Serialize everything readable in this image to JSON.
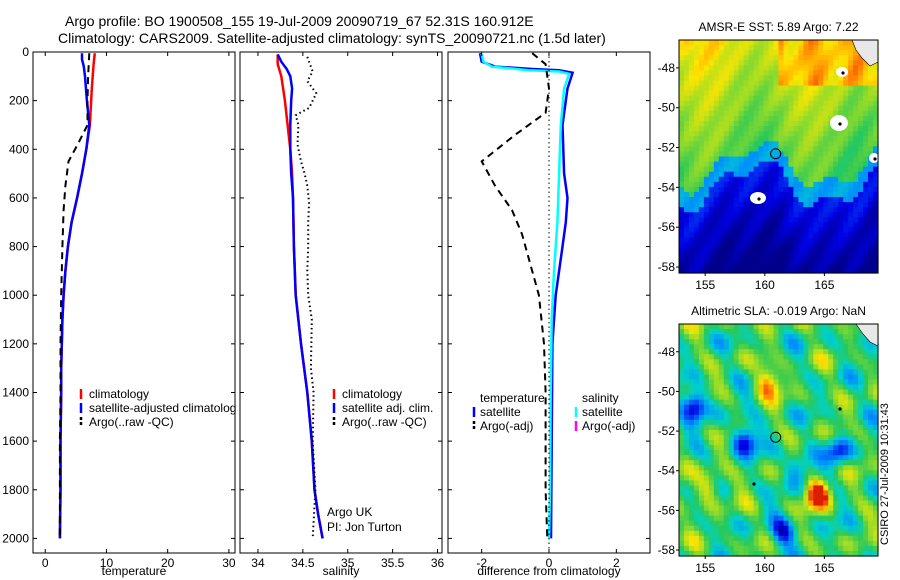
{
  "header": {
    "line1": "Argo profile: BO 1900508_155 19-Jul-2009 20090719_67 52.31S 160.912E",
    "line2": "Climatology: CARS2009. Satellite-adjusted climatology: synTS_20090721.nc (1.5d later)"
  },
  "credit": {
    "argo": "Argo UK",
    "pi": "PI: Jon Turton",
    "stamp": "CSIRO 27-Jul-2009 10:31:43"
  },
  "colors": {
    "climatology": "#ff0000",
    "satellite": "#0000ff",
    "argo": "#000000",
    "salinity_satellite": "#00ffff",
    "salinity_argo": "#ff00ff"
  },
  "chart_data": [
    {
      "type": "line",
      "xlabel": "temperature",
      "ylabel": "",
      "xlim": [
        -2,
        31
      ],
      "ylim": [
        2060,
        0
      ],
      "xticks": [
        0,
        10,
        20,
        30
      ],
      "yticks": [
        0,
        200,
        400,
        600,
        800,
        1000,
        1200,
        1400,
        1600,
        1800,
        2000
      ],
      "legend": {
        "placement": "lower-right",
        "entries": [
          "climatology",
          "satellite-adjusted climatolog",
          "Argo(..raw -QC)"
        ]
      },
      "series": [
        {
          "name": "climatology",
          "color": "#ff0000",
          "points": [
            [
              8.1,
              5
            ],
            [
              7.9,
              50
            ],
            [
              7.6,
              150
            ],
            [
              7.4,
              250
            ],
            [
              7.3,
              300
            ],
            [
              6.7,
              400
            ],
            [
              6.0,
              500
            ],
            [
              5.2,
              600
            ],
            [
              4.3,
              700
            ],
            [
              3.7,
              800
            ],
            [
              3.3,
              900
            ],
            [
              3.0,
              1000
            ],
            [
              2.8,
              1100
            ],
            [
              2.7,
              1200
            ],
            [
              2.6,
              1300
            ],
            [
              2.6,
              1400
            ],
            [
              2.5,
              1600
            ],
            [
              2.5,
              1800
            ],
            [
              2.4,
              2000
            ]
          ]
        },
        {
          "name": "satellite-adjusted climatolog",
          "color": "#0000ff",
          "points": [
            [
              6.0,
              5
            ],
            [
              6.0,
              30
            ],
            [
              6.3,
              60
            ],
            [
              6.5,
              100
            ],
            [
              6.8,
              200
            ],
            [
              7.2,
              300
            ],
            [
              6.7,
              400
            ],
            [
              6.0,
              500
            ],
            [
              5.2,
              600
            ],
            [
              4.3,
              700
            ],
            [
              3.7,
              800
            ],
            [
              3.3,
              900
            ],
            [
              3.0,
              1000
            ],
            [
              2.8,
              1100
            ],
            [
              2.7,
              1200
            ],
            [
              2.6,
              1300
            ],
            [
              2.6,
              1400
            ],
            [
              2.5,
              1600
            ],
            [
              2.5,
              1800
            ],
            [
              2.4,
              2000
            ]
          ]
        },
        {
          "name": "Argo(..raw -QC)",
          "color": "#000000",
          "dashed": true,
          "points": [
            [
              7.2,
              5
            ],
            [
              7.0,
              100
            ],
            [
              6.9,
              200
            ],
            [
              6.9,
              300
            ],
            [
              5.3,
              380
            ],
            [
              3.8,
              450
            ],
            [
              3.3,
              550
            ],
            [
              3.0,
              650
            ],
            [
              2.8,
              800
            ],
            [
              2.6,
              1000
            ],
            [
              2.5,
              1200
            ],
            [
              2.5,
              1400
            ],
            [
              2.4,
              1600
            ],
            [
              2.4,
              1800
            ],
            [
              2.4,
              2000
            ]
          ]
        }
      ]
    },
    {
      "type": "line",
      "xlabel": "salinity",
      "ylabel": "",
      "xlim": [
        33.8,
        36.05
      ],
      "ylim": [
        2060,
        0
      ],
      "xticks": [
        34,
        34.5,
        35,
        35.5,
        36
      ],
      "xticklabels": [
        "34",
        "34.5",
        "35",
        "35.5",
        "36"
      ],
      "legend": {
        "placement": "lower-right",
        "entries": [
          "climatology",
          "satellite adj. clim.",
          "Argo(..raw -QC)"
        ]
      },
      "series": [
        {
          "name": "climatology",
          "color": "#ff0000",
          "points": [
            [
              34.22,
              10
            ],
            [
              34.22,
              50
            ],
            [
              34.26,
              100
            ],
            [
              34.3,
              200
            ],
            [
              34.33,
              300
            ],
            [
              34.36,
              400
            ],
            [
              34.38,
              500
            ],
            [
              34.39,
              600
            ],
            [
              34.4,
              800
            ],
            [
              34.42,
              1000
            ],
            [
              34.48,
              1200
            ],
            [
              34.55,
              1400
            ],
            [
              34.6,
              1600
            ],
            [
              34.63,
              1800
            ],
            [
              34.67,
              1900
            ],
            [
              34.72,
              2000
            ]
          ]
        },
        {
          "name": "satellite adj. clim.",
          "color": "#0000ff",
          "points": [
            [
              34.22,
              10
            ],
            [
              34.26,
              40
            ],
            [
              34.32,
              70
            ],
            [
              34.36,
              100
            ],
            [
              34.38,
              150
            ],
            [
              34.37,
              200
            ],
            [
              34.36,
              300
            ],
            [
              34.36,
              400
            ],
            [
              34.37,
              500
            ],
            [
              34.39,
              600
            ],
            [
              34.4,
              800
            ],
            [
              34.42,
              1000
            ],
            [
              34.48,
              1200
            ],
            [
              34.55,
              1400
            ],
            [
              34.6,
              1600
            ],
            [
              34.63,
              1800
            ],
            [
              34.67,
              1900
            ],
            [
              34.72,
              2000
            ]
          ]
        },
        {
          "name": "Argo(..raw -QC)",
          "color": "#000000",
          "dotted": true,
          "points": [
            [
              34.55,
              20
            ],
            [
              34.61,
              80
            ],
            [
              34.55,
              120
            ],
            [
              34.65,
              170
            ],
            [
              34.57,
              230
            ],
            [
              34.42,
              260
            ],
            [
              34.45,
              300
            ],
            [
              34.44,
              380
            ],
            [
              34.48,
              450
            ],
            [
              34.52,
              500
            ],
            [
              34.55,
              550
            ],
            [
              34.57,
              620
            ],
            [
              34.56,
              700
            ],
            [
              34.56,
              800
            ],
            [
              34.55,
              900
            ],
            [
              34.56,
              1000
            ],
            [
              34.6,
              1100
            ],
            [
              34.59,
              1300
            ],
            [
              34.62,
              1400
            ],
            [
              34.61,
              1600
            ],
            [
              34.64,
              1800
            ],
            [
              34.61,
              2000
            ]
          ]
        }
      ]
    },
    {
      "type": "line",
      "xlabel": "difference from climatology",
      "ylabel": "",
      "xlim": [
        -3,
        3
      ],
      "ylim": [
        2060,
        0
      ],
      "xticks": [
        -2,
        0,
        2
      ],
      "legend": {
        "placement": "lower-right",
        "columns": [
          {
            "title": "temperature",
            "entries": [
              "satellite",
              "Argo(-adj)"
            ]
          },
          {
            "title": "salinity",
            "entries": [
              "satellite",
              "Argo(-adj)"
            ]
          }
        ]
      },
      "series": [
        {
          "name": "temperature satellite",
          "color": "#0000ff",
          "points": [
            [
              -2.05,
              5
            ],
            [
              -2.0,
              40
            ],
            [
              -1.6,
              60
            ],
            [
              -0.5,
              70
            ],
            [
              0.3,
              75
            ],
            [
              0.7,
              85
            ],
            [
              0.55,
              150
            ],
            [
              0.4,
              300
            ],
            [
              0.45,
              500
            ],
            [
              0.55,
              600
            ],
            [
              0.5,
              700
            ],
            [
              0.4,
              800
            ],
            [
              0.3,
              900
            ],
            [
              0.2,
              1000
            ],
            [
              0.1,
              1200
            ],
            [
              0.08,
              1600
            ],
            [
              0.06,
              2000
            ]
          ]
        },
        {
          "name": "salinity satellite",
          "color": "#00ffff",
          "points": [
            [
              -2.0,
              8
            ],
            [
              -1.95,
              40
            ],
            [
              -1.7,
              60
            ],
            [
              -0.6,
              75
            ],
            [
              0.3,
              80
            ],
            [
              0.6,
              90
            ],
            [
              0.45,
              150
            ],
            [
              0.35,
              300
            ],
            [
              0.3,
              500
            ],
            [
              0.25,
              700
            ],
            [
              0.15,
              900
            ],
            [
              0.08,
              1100
            ],
            [
              0.05,
              1400
            ],
            [
              0.03,
              1800
            ],
            [
              0.0,
              2000
            ]
          ]
        },
        {
          "name": "temperature Argo(-adj)",
          "color": "#000000",
          "dashed": true,
          "points": [
            [
              -0.5,
              5
            ],
            [
              -0.1,
              50
            ],
            [
              0.0,
              150
            ],
            [
              -0.1,
              250
            ],
            [
              -1.0,
              340
            ],
            [
              -2.0,
              450
            ],
            [
              -1.6,
              550
            ],
            [
              -1.1,
              650
            ],
            [
              -0.8,
              750
            ],
            [
              -0.6,
              850
            ],
            [
              -0.3,
              1000
            ],
            [
              -0.15,
              1200
            ],
            [
              -0.1,
              1400
            ],
            [
              -0.1,
              1600
            ],
            [
              -0.1,
              1800
            ],
            [
              -0.05,
              2000
            ]
          ]
        },
        {
          "name": "zero reference",
          "color": "#000000",
          "dotted": true,
          "points": [
            [
              0,
              0
            ],
            [
              0,
              2060
            ]
          ]
        }
      ]
    },
    {
      "type": "heatmap",
      "title": "AMSR-E SST: 5.89 Argo: 7.22",
      "xlim": [
        152.8,
        169.5
      ],
      "ylim": [
        -58.3,
        -46.6
      ],
      "xticks": [
        155,
        160,
        165
      ],
      "yticks": [
        -48,
        -50,
        -52,
        -54,
        -56,
        -58
      ],
      "marker": {
        "lon": 160.912,
        "lat": -52.31
      }
    },
    {
      "type": "heatmap",
      "title": "Altimetric SLA: -0.019 Argo: NaN",
      "xlim": [
        152.8,
        169.5
      ],
      "ylim": [
        -58.3,
        -46.6
      ],
      "xticks": [
        155,
        160,
        165
      ],
      "yticks": [
        -48,
        -50,
        -52,
        -54,
        -56,
        -58
      ],
      "marker": {
        "lon": 160.912,
        "lat": -52.31
      }
    }
  ]
}
